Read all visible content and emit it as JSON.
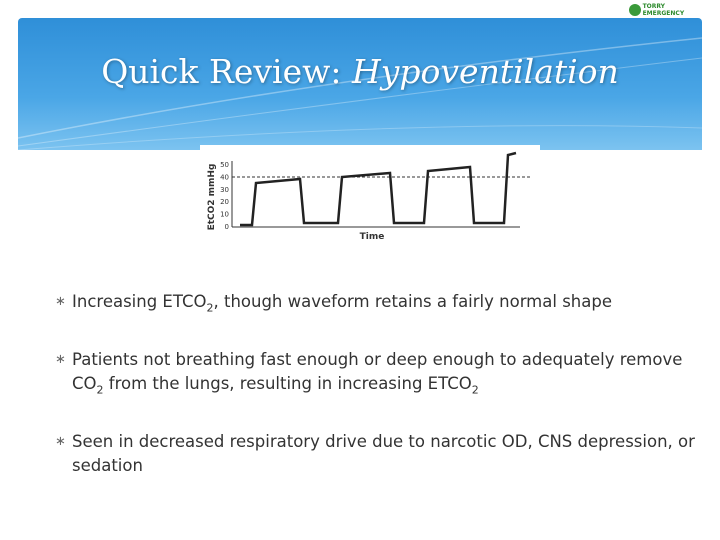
{
  "logo": {
    "text": "TORRY EMERGENCY"
  },
  "header": {
    "title": "Quick Review: ",
    "title_emphasis": "Hypoventilation"
  },
  "figure": {
    "y_label": "EtCO2 mmHg",
    "yticks": [
      50,
      40,
      30,
      20,
      10,
      0
    ],
    "x_label": "Time"
  },
  "bullets": [
    {
      "segments": [
        {
          "text": "Increasing ETCO"
        },
        {
          "sub": "2"
        },
        {
          "text": ", though waveform retains a fairly normal shape"
        }
      ]
    },
    {
      "segments": [
        {
          "text": "Patients not breathing fast enough or deep enough to adequately remove CO"
        },
        {
          "sub": "2"
        },
        {
          "text": " from the lungs, resulting in increasing ETCO"
        },
        {
          "sub": "2"
        }
      ]
    },
    {
      "segments": [
        {
          "text": "Seen in decreased respiratory drive due to narcotic OD, CNS depression, or sedation"
        }
      ]
    }
  ]
}
